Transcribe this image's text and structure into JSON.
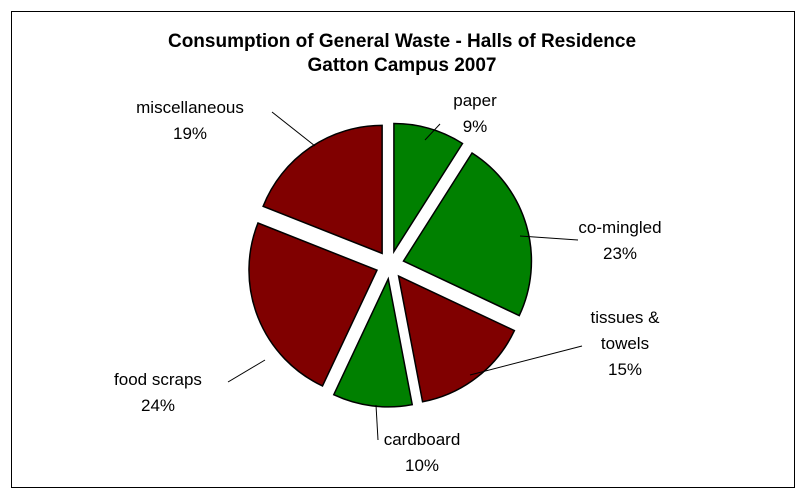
{
  "chart_data": {
    "type": "pie",
    "title": "Consumption of General Waste - Halls of Residence\nGatton Campus 2007",
    "categories": [
      "paper",
      "co-mingled",
      "tissues &\ntowels",
      "cardboard",
      "food scraps",
      "miscellaneous"
    ],
    "values": [
      9,
      23,
      15,
      10,
      24,
      19
    ],
    "value_labels": [
      "9%",
      "23%",
      "15%",
      "10%",
      "24%",
      "19%"
    ],
    "colors": [
      "#008000",
      "#008000",
      "#800000",
      "#008000",
      "#800000",
      "#800000"
    ]
  }
}
